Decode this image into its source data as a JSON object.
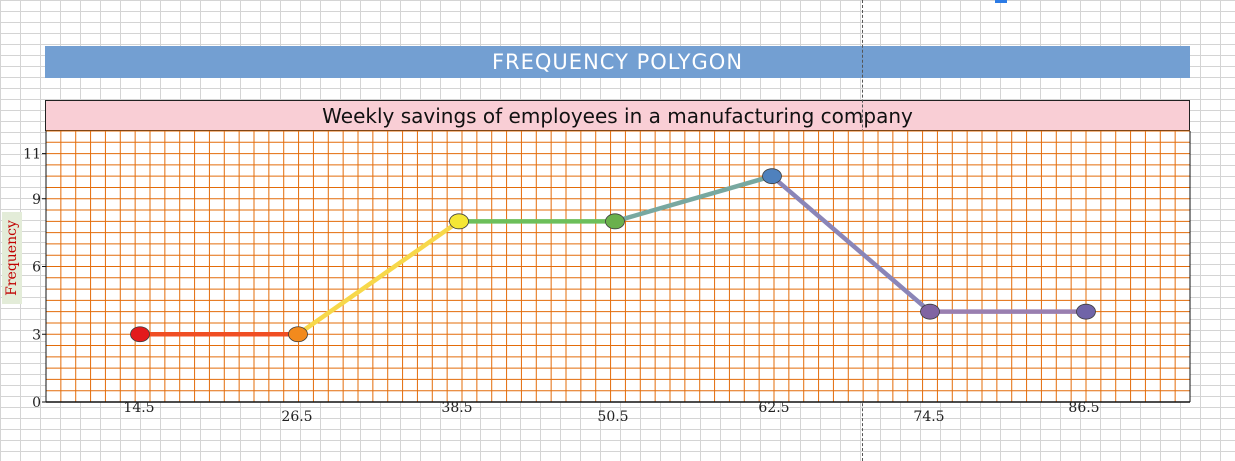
{
  "banner": {
    "title": "FREQUENCY POLYGON"
  },
  "chart_data": {
    "type": "line",
    "title": "Weekly savings of employees in a manufacturing company",
    "xlabel": "",
    "ylabel": "Frequency",
    "x": [
      14.5,
      26.5,
      38.5,
      50.5,
      62.5,
      74.5,
      86.5
    ],
    "x_ticks": [
      "14.5",
      "26.5",
      "38.5",
      "50.5",
      "62.5",
      "74.5",
      "86.5"
    ],
    "y_ticks": [
      "0",
      "3",
      "6",
      "9",
      "11"
    ],
    "ylim": [
      0,
      12
    ],
    "grid": true,
    "series": [
      {
        "values": [
          3,
          3,
          8,
          8,
          10,
          4,
          4
        ]
      }
    ],
    "point_colors": [
      "#e31a1c",
      "#f28a1d",
      "#f5e735",
      "#6ab04c",
      "#4f81bd",
      "#8064a2",
      "#7064a8"
    ],
    "segment_colors": [
      "#f04e23",
      "#f7d84a",
      "#6cbf5a",
      "#78a8a0",
      "#8a85b8",
      "#9a7fb0"
    ],
    "grid_color": "#e36c0a"
  }
}
